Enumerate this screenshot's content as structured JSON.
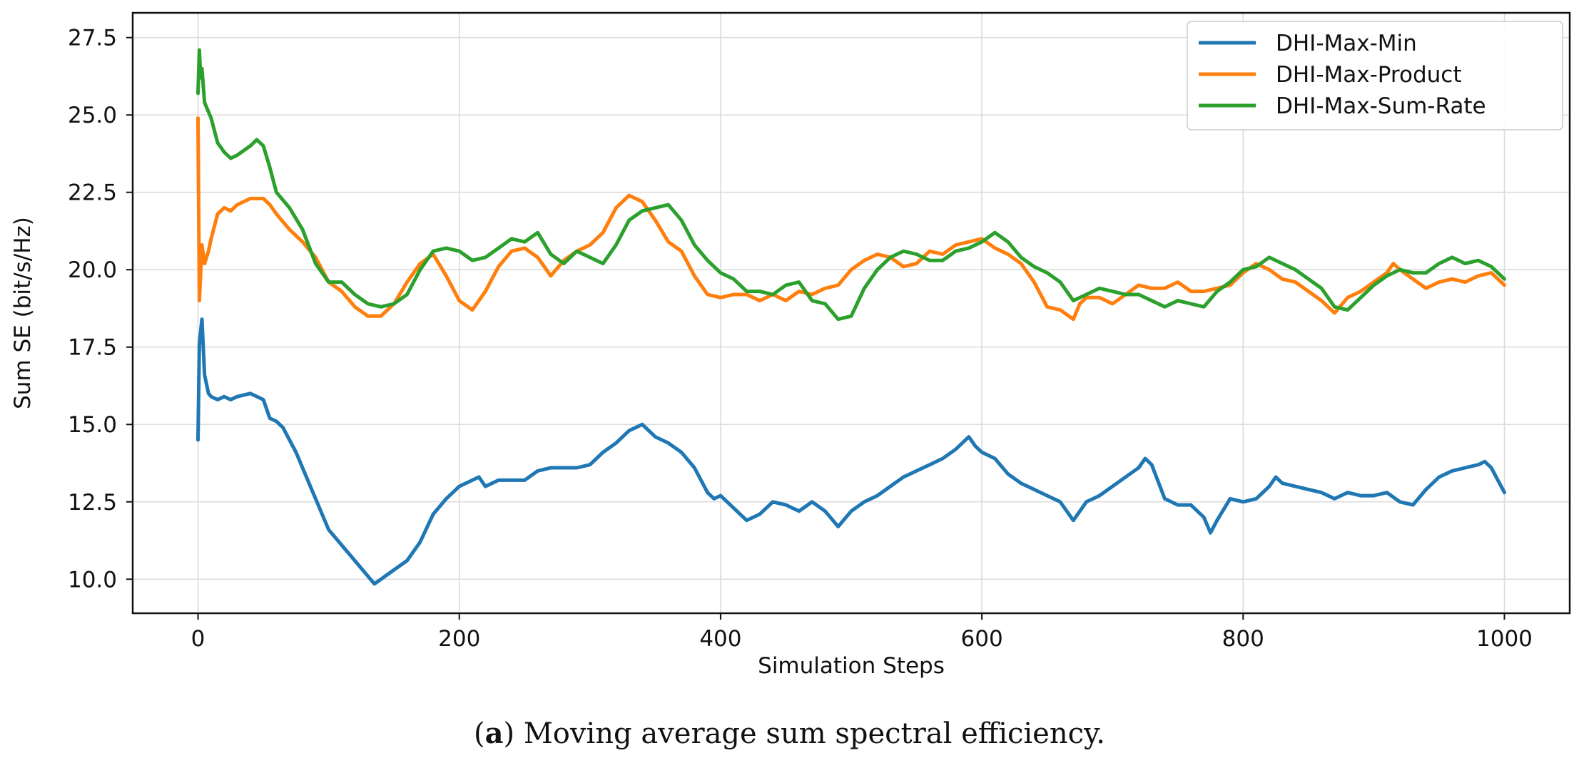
{
  "caption": {
    "prefix": "(",
    "letter": "a",
    "text": ") Moving average sum spectral efficiency."
  },
  "chart_data": {
    "type": "line",
    "title": "",
    "xlabel": "Simulation Steps",
    "ylabel": "Sum SE (bit/s/Hz)",
    "xlim": [
      -50,
      1050
    ],
    "ylim": [
      8.9,
      28.3
    ],
    "xticks": [
      0,
      200,
      400,
      600,
      800,
      1000
    ],
    "xtick_labels": [
      "0",
      "200",
      "400",
      "600",
      "800",
      "1000"
    ],
    "yticks": [
      10.0,
      12.5,
      15.0,
      17.5,
      20.0,
      22.5,
      25.0,
      27.5
    ],
    "ytick_labels": [
      "10.0",
      "12.5",
      "15.0",
      "17.5",
      "20.0",
      "22.5",
      "25.0",
      "27.5"
    ],
    "grid": true,
    "legend_position": "top-right",
    "series": [
      {
        "name": "DHI-Max-Min",
        "color": "#1f77b4",
        "x": [
          0,
          1,
          3,
          5,
          8,
          10,
          15,
          20,
          25,
          30,
          40,
          50,
          55,
          60,
          65,
          70,
          75,
          80,
          90,
          100,
          110,
          120,
          128,
          135,
          140,
          150,
          160,
          170,
          180,
          190,
          200,
          210,
          215,
          220,
          230,
          240,
          250,
          260,
          270,
          280,
          290,
          300,
          310,
          320,
          330,
          340,
          350,
          360,
          370,
          380,
          390,
          395,
          400,
          410,
          420,
          430,
          440,
          450,
          460,
          470,
          480,
          490,
          500,
          510,
          520,
          530,
          540,
          550,
          560,
          570,
          580,
          590,
          595,
          600,
          610,
          620,
          630,
          640,
          650,
          660,
          670,
          680,
          690,
          700,
          710,
          720,
          725,
          730,
          740,
          750,
          760,
          770,
          775,
          780,
          790,
          800,
          810,
          820,
          825,
          830,
          840,
          850,
          860,
          870,
          880,
          890,
          900,
          910,
          920,
          930,
          940,
          950,
          960,
          970,
          980,
          985,
          990,
          995,
          1000
        ],
        "values": [
          14.5,
          17.6,
          18.4,
          16.6,
          16.0,
          15.9,
          15.8,
          15.9,
          15.8,
          15.9,
          16.0,
          15.8,
          15.2,
          15.1,
          14.9,
          14.5,
          14.1,
          13.6,
          12.6,
          11.6,
          11.1,
          10.6,
          10.2,
          9.85,
          10.0,
          10.3,
          10.6,
          11.2,
          12.1,
          12.6,
          13.0,
          13.2,
          13.3,
          13.0,
          13.2,
          13.2,
          13.2,
          13.5,
          13.6,
          13.6,
          13.6,
          13.7,
          14.1,
          14.4,
          14.8,
          15.0,
          14.6,
          14.4,
          14.1,
          13.6,
          12.8,
          12.6,
          12.7,
          12.3,
          11.9,
          12.1,
          12.5,
          12.4,
          12.2,
          12.5,
          12.2,
          11.7,
          12.2,
          12.5,
          12.7,
          13.0,
          13.3,
          13.5,
          13.7,
          13.9,
          14.2,
          14.6,
          14.3,
          14.1,
          13.9,
          13.4,
          13.1,
          12.9,
          12.7,
          12.5,
          11.9,
          12.5,
          12.7,
          13.0,
          13.3,
          13.6,
          13.9,
          13.7,
          12.6,
          12.4,
          12.4,
          12.0,
          11.5,
          11.9,
          12.6,
          12.5,
          12.6,
          13.0,
          13.3,
          13.1,
          13.0,
          12.9,
          12.8,
          12.6,
          12.8,
          12.7,
          12.7,
          12.8,
          12.5,
          12.4,
          12.9,
          13.3,
          13.5,
          13.6,
          13.7,
          13.8,
          13.6,
          13.2,
          12.8
        ]
      },
      {
        "name": "DHI-Max-Product",
        "color": "#ff7f0e",
        "x": [
          0,
          1,
          3,
          5,
          8,
          10,
          15,
          20,
          25,
          30,
          40,
          50,
          55,
          60,
          70,
          80,
          90,
          100,
          110,
          120,
          130,
          140,
          150,
          160,
          170,
          180,
          190,
          200,
          210,
          220,
          230,
          240,
          250,
          260,
          270,
          280,
          290,
          300,
          310,
          320,
          330,
          340,
          350,
          360,
          370,
          380,
          390,
          400,
          410,
          420,
          430,
          440,
          450,
          460,
          470,
          480,
          490,
          500,
          510,
          520,
          530,
          540,
          550,
          560,
          570,
          580,
          590,
          600,
          610,
          620,
          630,
          640,
          650,
          660,
          670,
          675,
          680,
          690,
          700,
          710,
          720,
          730,
          740,
          750,
          760,
          770,
          780,
          790,
          800,
          810,
          820,
          830,
          840,
          850,
          860,
          870,
          880,
          890,
          900,
          910,
          915,
          920,
          930,
          940,
          950,
          960,
          970,
          980,
          990,
          1000
        ],
        "values": [
          24.9,
          19.0,
          20.8,
          20.2,
          20.6,
          21.0,
          21.8,
          22.0,
          21.9,
          22.1,
          22.3,
          22.3,
          22.1,
          21.8,
          21.3,
          20.9,
          20.4,
          19.6,
          19.3,
          18.8,
          18.5,
          18.5,
          18.9,
          19.6,
          20.2,
          20.5,
          19.8,
          19.0,
          18.7,
          19.3,
          20.1,
          20.6,
          20.7,
          20.4,
          19.8,
          20.3,
          20.6,
          20.8,
          21.2,
          22.0,
          22.4,
          22.2,
          21.6,
          20.9,
          20.6,
          19.8,
          19.2,
          19.1,
          19.2,
          19.2,
          19.0,
          19.2,
          19.0,
          19.3,
          19.2,
          19.4,
          19.5,
          20.0,
          20.3,
          20.5,
          20.4,
          20.1,
          20.2,
          20.6,
          20.5,
          20.8,
          20.9,
          21.0,
          20.7,
          20.5,
          20.2,
          19.6,
          18.8,
          18.7,
          18.4,
          18.9,
          19.1,
          19.1,
          18.9,
          19.2,
          19.5,
          19.4,
          19.4,
          19.6,
          19.3,
          19.3,
          19.4,
          19.5,
          19.9,
          20.2,
          20.0,
          19.7,
          19.6,
          19.3,
          19.0,
          18.6,
          19.1,
          19.3,
          19.6,
          19.9,
          20.2,
          20.0,
          19.7,
          19.4,
          19.6,
          19.7,
          19.6,
          19.8,
          19.9,
          19.5
        ]
      },
      {
        "name": "DHI-Max-Sum-Rate",
        "color": "#2ca02c",
        "x": [
          0,
          1,
          2,
          3,
          5,
          8,
          10,
          15,
          20,
          25,
          30,
          40,
          45,
          50,
          55,
          60,
          70,
          80,
          90,
          100,
          110,
          120,
          130,
          140,
          150,
          160,
          170,
          180,
          190,
          200,
          210,
          220,
          230,
          240,
          250,
          260,
          270,
          280,
          290,
          300,
          310,
          320,
          330,
          340,
          350,
          360,
          370,
          380,
          390,
          400,
          410,
          420,
          430,
          440,
          450,
          460,
          470,
          480,
          490,
          500,
          510,
          520,
          530,
          540,
          550,
          560,
          570,
          580,
          590,
          600,
          610,
          620,
          630,
          640,
          650,
          660,
          670,
          680,
          690,
          700,
          710,
          720,
          730,
          740,
          750,
          760,
          770,
          780,
          790,
          800,
          810,
          820,
          830,
          840,
          850,
          860,
          870,
          880,
          890,
          900,
          910,
          920,
          930,
          940,
          950,
          960,
          970,
          980,
          990,
          1000
        ],
        "values": [
          25.7,
          27.1,
          26.2,
          26.5,
          25.4,
          25.1,
          24.9,
          24.1,
          23.8,
          23.6,
          23.7,
          24.0,
          24.2,
          24.0,
          23.3,
          22.5,
          22.0,
          21.3,
          20.2,
          19.6,
          19.6,
          19.2,
          18.9,
          18.8,
          18.9,
          19.2,
          20.0,
          20.6,
          20.7,
          20.6,
          20.3,
          20.4,
          20.7,
          21.0,
          20.9,
          21.2,
          20.5,
          20.2,
          20.6,
          20.4,
          20.2,
          20.8,
          21.6,
          21.9,
          22.0,
          22.1,
          21.6,
          20.8,
          20.3,
          19.9,
          19.7,
          19.3,
          19.3,
          19.2,
          19.5,
          19.6,
          19.0,
          18.9,
          18.4,
          18.5,
          19.4,
          20.0,
          20.4,
          20.6,
          20.5,
          20.3,
          20.3,
          20.6,
          20.7,
          20.9,
          21.2,
          20.9,
          20.4,
          20.1,
          19.9,
          19.6,
          19.0,
          19.2,
          19.4,
          19.3,
          19.2,
          19.2,
          19.0,
          18.8,
          19.0,
          18.9,
          18.8,
          19.3,
          19.6,
          20.0,
          20.1,
          20.4,
          20.2,
          20.0,
          19.7,
          19.4,
          18.8,
          18.7,
          19.1,
          19.5,
          19.8,
          20.0,
          19.9,
          19.9,
          20.2,
          20.4,
          20.2,
          20.3,
          20.1,
          19.7
        ]
      }
    ]
  }
}
